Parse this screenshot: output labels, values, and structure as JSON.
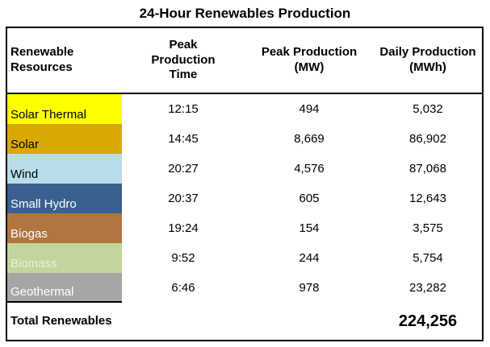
{
  "title": "24-Hour Renewables Production",
  "table": {
    "headers": [
      "Renewable Resources",
      "Peak Production Time",
      "Peak Production (MW)",
      "Daily Production (MWh)"
    ],
    "rows": [
      {
        "resource": "Solar Thermal",
        "color": "#FFFF00",
        "text_color": "#000000",
        "peak_time": "12:15",
        "peak_mw": "494",
        "daily_mwh": "5,032"
      },
      {
        "resource": "Solar",
        "color": "#D9A800",
        "text_color": "#000000",
        "peak_time": "14:45",
        "peak_mw": "8,669",
        "daily_mwh": "86,902"
      },
      {
        "resource": "Wind",
        "color": "#B9DDE8",
        "text_color": "#000000",
        "peak_time": "20:27",
        "peak_mw": "4,576",
        "daily_mwh": "87,068"
      },
      {
        "resource": "Small Hydro",
        "color": "#38618F",
        "text_color": "#FFFFFF",
        "peak_time": "20:37",
        "peak_mw": "605",
        "daily_mwh": "12,643"
      },
      {
        "resource": "Biogas",
        "color": "#B17540",
        "text_color": "#FFFFFF",
        "peak_time": "19:24",
        "peak_mw": "154",
        "daily_mwh": "3,575"
      },
      {
        "resource": "Biomass",
        "color": "#C2D69B",
        "text_color": "#EEECE1",
        "peak_time": "9:52",
        "peak_mw": "244",
        "daily_mwh": "5,754"
      },
      {
        "resource": "Geothermal",
        "color": "#A6A6A6",
        "text_color": "#FFFFFF",
        "peak_time": "6:46",
        "peak_mw": "978",
        "daily_mwh": "23,282"
      }
    ],
    "total": {
      "label": "Total Renewables",
      "daily_mwh": "224,256"
    }
  },
  "chart_data": {
    "type": "table",
    "title": "24-Hour Renewables Production",
    "columns": [
      "Renewable Resources",
      "Peak Production Time",
      "Peak Production (MW)",
      "Daily Production (MWh)"
    ],
    "rows": [
      [
        "Solar Thermal",
        "12:15",
        494,
        5032
      ],
      [
        "Solar",
        "14:45",
        8669,
        86902
      ],
      [
        "Wind",
        "20:27",
        4576,
        87068
      ],
      [
        "Small Hydro",
        "20:37",
        605,
        12643
      ],
      [
        "Biogas",
        "19:24",
        154,
        3575
      ],
      [
        "Biomass",
        "9:52",
        244,
        5754
      ],
      [
        "Geothermal",
        "6:46",
        978,
        23282
      ]
    ],
    "total": {
      "label": "Total Renewables",
      "daily_production_mwh": 224256
    },
    "row_colors": [
      "#FFFF00",
      "#D9A800",
      "#B9DDE8",
      "#38618F",
      "#B17540",
      "#C2D69B",
      "#A6A6A6"
    ]
  }
}
